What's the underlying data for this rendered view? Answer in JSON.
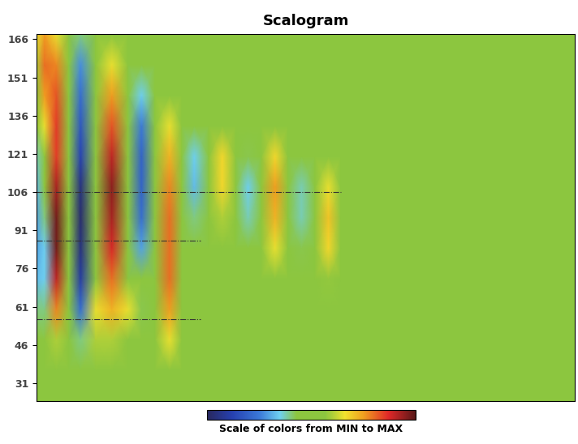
{
  "chart_data": {
    "type": "heatmap",
    "title": "Scalogram",
    "x": [
      0,
      1.5,
      3.7,
      6,
      8.2,
      11,
      14,
      17,
      19.5,
      22,
      24.7,
      27,
      29.3,
      32,
      34.5,
      37,
      39.3,
      41.7,
      44.3,
      46.7,
      49.2,
      51.7,
      54.2,
      56.5,
      59,
      61.5,
      64,
      66.5,
      69,
      71.5,
      74,
      84,
      100
    ],
    "y": [
      24,
      36,
      48,
      60,
      72,
      84,
      96,
      108,
      120,
      132,
      144,
      156,
      168
    ],
    "cells": [
      [
        0,
        0,
        0,
        0,
        0,
        0,
        0,
        0,
        0,
        0,
        0,
        0,
        0,
        0,
        0,
        0,
        0,
        0,
        0,
        0,
        0,
        0,
        0,
        0,
        0,
        0,
        0,
        0,
        0,
        0,
        0,
        0,
        0
      ],
      [
        0,
        0,
        0,
        0,
        0,
        0,
        0,
        0,
        0,
        0,
        0,
        0,
        0,
        0,
        0,
        0,
        0,
        0,
        0,
        0,
        0,
        0,
        0,
        0,
        0,
        0,
        0,
        0,
        0,
        0,
        0,
        0,
        0
      ],
      [
        0,
        0,
        0.2,
        0,
        -0.2,
        0.2,
        0.2,
        0.1,
        0,
        0,
        0.3,
        0,
        0,
        0,
        0,
        0,
        0,
        0,
        0,
        0,
        0,
        0,
        0,
        0,
        0,
        0,
        0,
        0,
        0,
        0,
        0,
        0,
        0
      ],
      [
        -0.2,
        -0.2,
        0.55,
        0,
        -0.55,
        0.3,
        0.45,
        0.3,
        -0.15,
        0,
        0.5,
        0,
        0,
        0,
        0,
        0,
        0,
        0,
        0,
        0,
        0,
        0,
        0,
        0,
        0,
        0,
        0,
        0,
        0,
        0,
        0,
        0,
        0
      ],
      [
        -0.35,
        -0.3,
        0.8,
        0,
        -0.8,
        0.1,
        0.6,
        0.05,
        -0.1,
        0,
        0.6,
        0,
        0,
        0,
        0,
        0,
        0,
        0,
        0.1,
        0,
        -0.05,
        0,
        0.15,
        0,
        -0.03,
        0,
        0.05,
        0,
        0,
        0,
        0,
        0,
        0
      ],
      [
        -0.4,
        -0.3,
        0.95,
        0,
        -0.9,
        0,
        0.75,
        0,
        -0.4,
        0,
        0.6,
        0,
        -0.05,
        0,
        0.05,
        0,
        -0.1,
        0,
        0.3,
        0,
        -0.15,
        0,
        0.35,
        0,
        -0.08,
        0,
        0.1,
        0,
        -0.05,
        0,
        0.04,
        0,
        0
      ],
      [
        -0.4,
        -0.2,
        0.95,
        0,
        -0.95,
        0,
        0.85,
        0,
        -0.55,
        0,
        0.6,
        0,
        -0.2,
        0,
        0.2,
        0,
        -0.25,
        0,
        0.45,
        0,
        -0.25,
        0,
        0.4,
        0,
        -0.1,
        0,
        0.12,
        0,
        -0.08,
        0,
        0.06,
        0,
        0
      ],
      [
        -0.35,
        -0.1,
        0.85,
        0,
        -0.9,
        0,
        0.9,
        0,
        -0.6,
        0,
        0.55,
        0,
        -0.35,
        0,
        0.35,
        0,
        -0.3,
        0,
        0.5,
        0,
        -0.25,
        0,
        0.3,
        0,
        -0.08,
        0,
        0.1,
        0,
        -0.05,
        0,
        0.04,
        0,
        0
      ],
      [
        -0.25,
        0.1,
        0.7,
        0,
        -0.75,
        0,
        0.8,
        0,
        -0.6,
        0,
        0.45,
        0,
        -0.3,
        0,
        0.35,
        0,
        -0.15,
        0,
        0.35,
        0,
        -0.1,
        0,
        0.1,
        0,
        -0.03,
        0,
        0.05,
        0,
        0,
        0,
        0,
        0,
        0
      ],
      [
        0,
        0.3,
        0.7,
        0,
        -0.65,
        0,
        0.65,
        0,
        -0.5,
        0,
        0.3,
        0,
        -0.1,
        0,
        0.1,
        0,
        0,
        0,
        0.1,
        0,
        0,
        0,
        0,
        0,
        0,
        0,
        0,
        0,
        0,
        0,
        0,
        0,
        0
      ],
      [
        0.1,
        0.5,
        0.65,
        0,
        -0.55,
        0,
        0.5,
        0,
        -0.3,
        0,
        0.1,
        0,
        0,
        0,
        0,
        0,
        0,
        0,
        0,
        0,
        0,
        0,
        0,
        0,
        0,
        0,
        0,
        0,
        0,
        0,
        0,
        0,
        0
      ],
      [
        0.2,
        0.6,
        0.55,
        0,
        -0.45,
        0,
        0.3,
        0,
        0,
        0,
        0,
        0,
        0,
        0,
        0,
        0,
        0,
        0,
        0,
        0,
        0,
        0,
        0,
        0,
        0,
        0,
        0,
        0,
        0,
        0,
        0,
        0,
        0
      ],
      [
        0.3,
        0.5,
        0.3,
        0,
        -0.2,
        0,
        0,
        0,
        0,
        0,
        0,
        0,
        0,
        0,
        0,
        0,
        0,
        0,
        0,
        0,
        0,
        0,
        0,
        0,
        0,
        0,
        0,
        0,
        0,
        0,
        0,
        0,
        0
      ]
    ],
    "xlim": [
      0,
      100
    ],
    "ylim": [
      24,
      168
    ],
    "yticks": [
      31,
      46,
      61,
      76,
      91,
      106,
      121,
      136,
      151,
      166
    ],
    "tick_labels": "y",
    "reference_lines": [
      {
        "y": 106,
        "x_end": 56.5,
        "line_style": "dashdot"
      },
      {
        "y": 87,
        "x_end": 30.4,
        "line_style": "dashdot"
      },
      {
        "y": 56,
        "x_end": 30.4,
        "line_style": "dashdot"
      }
    ],
    "colorbar": {
      "label": "Scale of colors from MIN to MAX",
      "range": [
        -1,
        1
      ]
    }
  }
}
